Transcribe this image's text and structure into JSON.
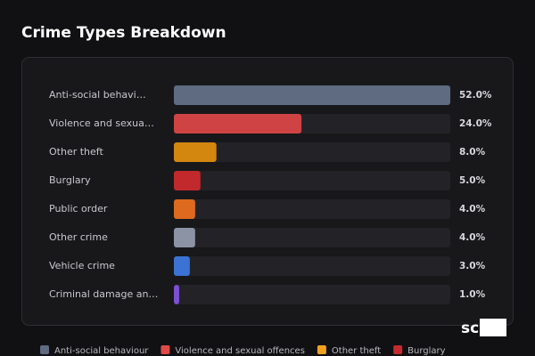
{
  "chart_data": {
    "type": "bar",
    "orientation": "horizontal",
    "title": "Crime Types Breakdown",
    "categories": [
      "Anti-social behavi…",
      "Violence and sexua…",
      "Other theft",
      "Burglary",
      "Public order",
      "Other crime",
      "Vehicle crime",
      "Criminal damage an…"
    ],
    "values": [
      52.0,
      24.0,
      8.0,
      5.0,
      4.0,
      4.0,
      3.0,
      1.0
    ],
    "value_labels": [
      "52.0%",
      "24.0%",
      "8.0%",
      "5.0%",
      "4.0%",
      "4.0%",
      "3.0%",
      "1.0%"
    ],
    "colors": [
      "#5e6b80",
      "#d04344",
      "#d4870f",
      "#c2292c",
      "#dd6a1e",
      "#8b93a5",
      "#3a73d3",
      "#7b50d1"
    ],
    "legend": [
      {
        "name": "Anti-social behaviour",
        "color": "#5e6b80"
      },
      {
        "name": "Violence and sexual offences",
        "color": "#e04a4a"
      },
      {
        "name": "Other theft",
        "color": "#f0a21f"
      },
      {
        "name": "Burglary",
        "color": "#c62a2d"
      }
    ]
  },
  "logo": "scOS"
}
